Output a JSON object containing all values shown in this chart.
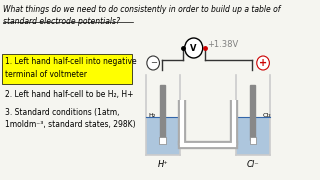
{
  "bg_color": "#f5f5f0",
  "title_text": "What things do we need to do consistently in order to build up a table of\nstandard electrode potentials?",
  "title_fontsize": 5.5,
  "bullet1_highlight": "1. Left hand half-cell into negative\nterminal of voltmeter",
  "bullet2": "2. Left hand half-cell to be H₂, H+",
  "bullet3": "3. Standard conditions (1atm,\n1moldm⁻³, standard states, 298K)",
  "box_color": "#ffff00",
  "box_text_color": "#000000",
  "voltage_text": "+1.38V",
  "voltage_color": "#808080",
  "left_label": "H⁺",
  "right_label": "Cl⁻",
  "left_gas": "H₂",
  "right_gas": "Cl₂",
  "minus_color": "#333333",
  "plus_color": "#cc0000",
  "wire_color": "#333333",
  "tank_color": "#cccccc",
  "liquid_color": "#6699cc",
  "salt_bridge_color": "#aaaaaa",
  "electrode_color": "#888888"
}
